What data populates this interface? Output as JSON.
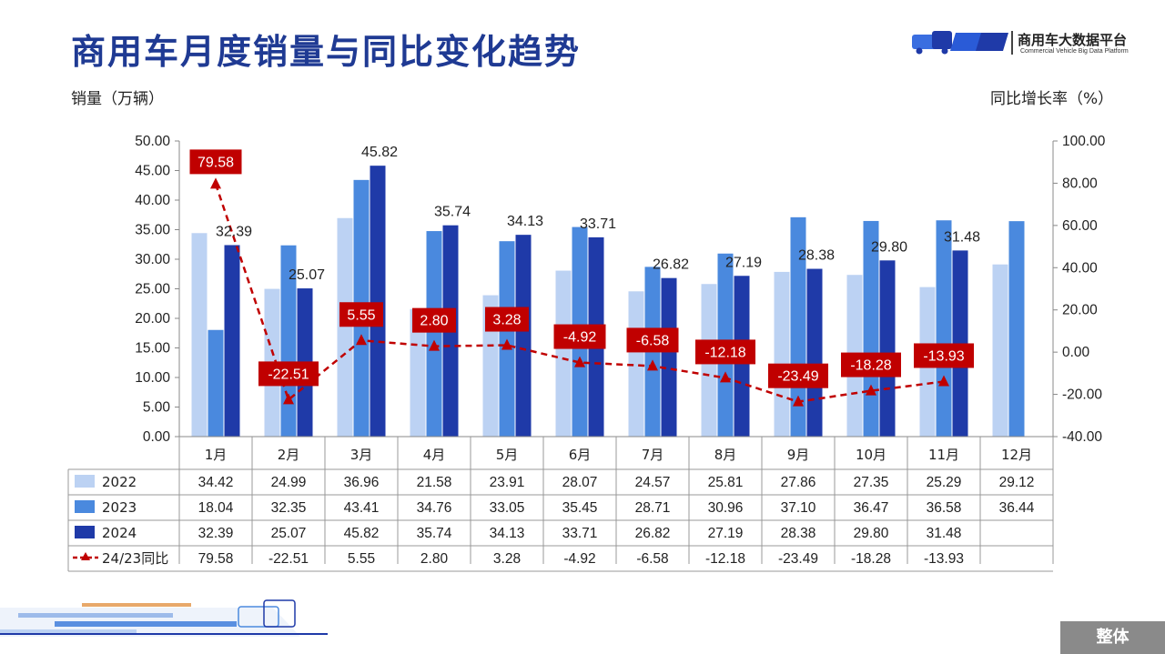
{
  "page": {
    "title": "商用车月度销量与同比变化趋势",
    "logo_name": "商用车大数据平台",
    "logo_sub": "Commercial Vehicle Big Data Platform",
    "unit_left": "销量（万辆）",
    "unit_right": "同比增长率（%）",
    "badge": "整体"
  },
  "colors": {
    "title": "#1f3a93",
    "s2022": "#bcd2f3",
    "s2023": "#4a89de",
    "s2024": "#1f3aa8",
    "ratio": "#c00000",
    "badge": "#8a8a8a"
  },
  "chart_data": {
    "type": "bar",
    "categories": [
      "1月",
      "2月",
      "3月",
      "4月",
      "5月",
      "6月",
      "7月",
      "8月",
      "9月",
      "10月",
      "11月",
      "12月"
    ],
    "series": [
      {
        "name": "2022",
        "values": [
          34.42,
          24.99,
          36.96,
          21.58,
          23.91,
          28.07,
          24.57,
          25.81,
          27.86,
          27.35,
          25.29,
          29.12
        ]
      },
      {
        "name": "2023",
        "values": [
          18.04,
          32.35,
          43.41,
          34.76,
          33.05,
          35.45,
          28.71,
          30.96,
          37.1,
          36.47,
          36.58,
          36.44
        ]
      },
      {
        "name": "2024",
        "values": [
          32.39,
          25.07,
          45.82,
          35.74,
          34.13,
          33.71,
          26.82,
          27.19,
          28.38,
          29.8,
          31.48,
          null
        ]
      }
    ],
    "line_series": {
      "name": "24/23同比",
      "type": "line",
      "axis": "right",
      "values": [
        79.58,
        -22.51,
        5.55,
        2.8,
        3.28,
        -4.92,
        -6.58,
        -12.18,
        -23.49,
        -18.28,
        -13.93,
        null
      ]
    },
    "y_left": {
      "min": 0,
      "max": 50,
      "step": 5,
      "ticks": [
        "0.00",
        "5.00",
        "10.00",
        "15.00",
        "20.00",
        "25.00",
        "30.00",
        "35.00",
        "40.00",
        "45.00",
        "50.00"
      ]
    },
    "y_right": {
      "min": -40,
      "max": 100,
      "step": 20,
      "ticks": [
        "-40.00",
        "-20.00",
        "0.00",
        "20.00",
        "40.00",
        "60.00",
        "80.00",
        "100.00"
      ]
    },
    "data_table": {
      "rows": [
        {
          "label": "2022",
          "cells": [
            "34.42",
            "24.99",
            "36.96",
            "21.58",
            "23.91",
            "28.07",
            "24.57",
            "25.81",
            "27.86",
            "27.35",
            "25.29",
            "29.12"
          ]
        },
        {
          "label": "2023",
          "cells": [
            "18.04",
            "32.35",
            "43.41",
            "34.76",
            "33.05",
            "35.45",
            "28.71",
            "30.96",
            "37.10",
            "36.47",
            "36.58",
            "36.44"
          ]
        },
        {
          "label": "2024",
          "cells": [
            "32.39",
            "25.07",
            "45.82",
            "35.74",
            "34.13",
            "33.71",
            "26.82",
            "27.19",
            "28.38",
            "29.80",
            "31.48",
            ""
          ]
        },
        {
          "label": "24/23同比",
          "cells": [
            "79.58",
            "-22.51",
            "5.55",
            "2.80",
            "3.28",
            "-4.92",
            "-6.58",
            "-12.18",
            "-23.49",
            "-18.28",
            "-13.93",
            ""
          ]
        }
      ]
    },
    "bar_labels_2024": [
      "32.39",
      "25.07",
      "45.82",
      "35.74",
      "34.13",
      "33.71",
      "26.82",
      "27.19",
      "28.38",
      "29.80",
      "31.48",
      ""
    ],
    "ratio_labels": [
      "79.58",
      "-22.51",
      "5.55",
      "2.80",
      "3.28",
      "-4.92",
      "-6.58",
      "-12.18",
      "-23.49",
      "-18.28",
      "-13.93",
      ""
    ],
    "grid": false,
    "legend": "table-left"
  }
}
